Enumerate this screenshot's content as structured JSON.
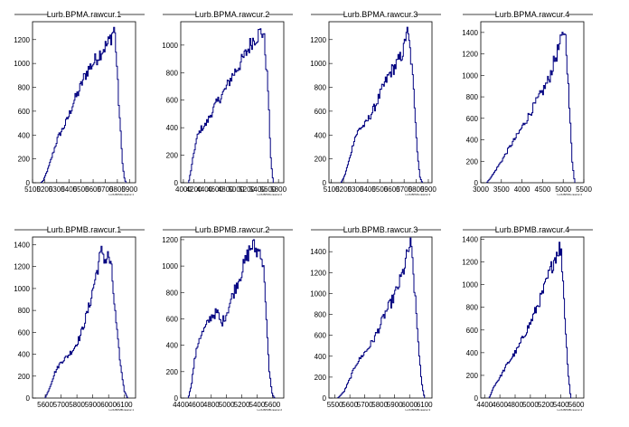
{
  "chart_data": [
    {
      "type": "bar",
      "title": "Lurb.BPMA.rawcur.1",
      "xlabel": "Lurb.BPMA.rawcur.1",
      "xlim": [
        5100,
        5950
      ],
      "ylim": [
        0,
        1350
      ],
      "x_ticks": [
        5100,
        5200,
        5300,
        5400,
        5500,
        5600,
        5700,
        5800,
        5900
      ],
      "y_ticks": [
        0,
        200,
        400,
        600,
        800,
        1000,
        1200
      ],
      "profile": [
        [
          5170,
          0
        ],
        [
          5190,
          20
        ],
        [
          5230,
          120
        ],
        [
          5270,
          250
        ],
        [
          5310,
          380
        ],
        [
          5360,
          470
        ],
        [
          5400,
          560
        ],
        [
          5440,
          680
        ],
        [
          5480,
          760
        ],
        [
          5520,
          870
        ],
        [
          5560,
          950
        ],
        [
          5600,
          1000
        ],
        [
          5640,
          1060
        ],
        [
          5680,
          1120
        ],
        [
          5720,
          1160
        ],
        [
          5760,
          1250
        ],
        [
          5775,
          1310
        ],
        [
          5790,
          1100
        ],
        [
          5810,
          700
        ],
        [
          5825,
          450
        ],
        [
          5840,
          200
        ],
        [
          5855,
          50
        ],
        [
          5870,
          0
        ]
      ]
    },
    {
      "type": "bar",
      "title": "Lurb.BPMA.rawcur.2",
      "xlabel": "Lurb.BPMA.rawcur.2",
      "xlim": [
        3950,
        5900
      ],
      "ylim": [
        0,
        1170
      ],
      "x_ticks": [
        4000,
        4200,
        4400,
        4600,
        4800,
        5000,
        5200,
        5400,
        5600,
        5800
      ],
      "y_ticks": [
        0,
        200,
        400,
        600,
        800,
        1000
      ],
      "profile": [
        [
          4100,
          0
        ],
        [
          4150,
          100
        ],
        [
          4200,
          220
        ],
        [
          4260,
          330
        ],
        [
          4330,
          390
        ],
        [
          4420,
          420
        ],
        [
          4500,
          480
        ],
        [
          4600,
          560
        ],
        [
          4700,
          620
        ],
        [
          4800,
          680
        ],
        [
          4900,
          760
        ],
        [
          5000,
          820
        ],
        [
          5100,
          880
        ],
        [
          5200,
          950
        ],
        [
          5300,
          1030
        ],
        [
          5400,
          1070
        ],
        [
          5480,
          1100
        ],
        [
          5520,
          1080
        ],
        [
          5560,
          900
        ],
        [
          5600,
          700
        ],
        [
          5630,
          400
        ],
        [
          5660,
          150
        ],
        [
          5700,
          0
        ]
      ]
    },
    {
      "type": "bar",
      "title": "Lurb.BPMA.rawcur.3",
      "xlabel": "Lurb.BPMA.rawcur.3",
      "xlim": [
        5080,
        5930
      ],
      "ylim": [
        0,
        1350
      ],
      "x_ticks": [
        5100,
        5200,
        5300,
        5400,
        5500,
        5600,
        5700,
        5800,
        5900
      ],
      "y_ticks": [
        0,
        200,
        400,
        600,
        800,
        1000,
        1200
      ],
      "profile": [
        [
          5180,
          0
        ],
        [
          5210,
          60
        ],
        [
          5250,
          200
        ],
        [
          5290,
          370
        ],
        [
          5330,
          450
        ],
        [
          5380,
          490
        ],
        [
          5430,
          580
        ],
        [
          5470,
          660
        ],
        [
          5510,
          760
        ],
        [
          5550,
          850
        ],
        [
          5590,
          930
        ],
        [
          5630,
          980
        ],
        [
          5670,
          1050
        ],
        [
          5700,
          1120
        ],
        [
          5720,
          1290
        ],
        [
          5745,
          1150
        ],
        [
          5770,
          900
        ],
        [
          5790,
          600
        ],
        [
          5810,
          250
        ],
        [
          5830,
          50
        ],
        [
          5850,
          0
        ]
      ]
    },
    {
      "type": "bar",
      "title": "Lurb.BPMA.rawcur.4",
      "xlabel": "Lurb.BPMA.rawcur.4",
      "xlim": [
        3000,
        5500
      ],
      "ylim": [
        0,
        1500
      ],
      "x_ticks": [
        3000,
        3500,
        4000,
        4500,
        5000,
        5500
      ],
      "y_ticks": [
        0,
        200,
        400,
        600,
        800,
        1000,
        1200,
        1400
      ],
      "profile": [
        [
          3150,
          0
        ],
        [
          3300,
          80
        ],
        [
          3500,
          200
        ],
        [
          3700,
          330
        ],
        [
          3900,
          450
        ],
        [
          4100,
          580
        ],
        [
          4300,
          720
        ],
        [
          4500,
          850
        ],
        [
          4650,
          960
        ],
        [
          4800,
          1150
        ],
        [
          4900,
          1260
        ],
        [
          4980,
          1350
        ],
        [
          5030,
          1440
        ],
        [
          5080,
          1250
        ],
        [
          5150,
          700
        ],
        [
          5220,
          200
        ],
        [
          5280,
          0
        ]
      ]
    },
    {
      "type": "bar",
      "title": "Lurb.BPMB.rawcur.1",
      "xlabel": "Lurb.BPMB.rawcur.1",
      "xlim": [
        5520,
        6170
      ],
      "ylim": [
        0,
        1470
      ],
      "x_ticks": [
        5600,
        5700,
        5800,
        5900,
        6000,
        6100
      ],
      "y_ticks": [
        0,
        200,
        400,
        600,
        800,
        1000,
        1200,
        1400
      ],
      "profile": [
        [
          5600,
          0
        ],
        [
          5630,
          100
        ],
        [
          5660,
          230
        ],
        [
          5700,
          330
        ],
        [
          5740,
          380
        ],
        [
          5780,
          450
        ],
        [
          5820,
          560
        ],
        [
          5850,
          700
        ],
        [
          5880,
          850
        ],
        [
          5910,
          1050
        ],
        [
          5940,
          1250
        ],
        [
          5960,
          1350
        ],
        [
          5980,
          1250
        ],
        [
          6000,
          1300
        ],
        [
          6020,
          1150
        ],
        [
          6040,
          800
        ],
        [
          6060,
          500
        ],
        [
          6080,
          250
        ],
        [
          6100,
          60
        ],
        [
          6120,
          0
        ]
      ]
    },
    {
      "type": "bar",
      "title": "Lurb.BPMB.rawcur.2",
      "xlabel": "Lurb.BPMB.rawcur.2",
      "xlim": [
        4400,
        5750
      ],
      "ylim": [
        0,
        1220
      ],
      "x_ticks": [
        4400,
        4600,
        4800,
        5000,
        5200,
        5400,
        5600
      ],
      "y_ticks": [
        0,
        200,
        400,
        600,
        800,
        1000,
        1200
      ],
      "profile": [
        [
          4500,
          0
        ],
        [
          4540,
          100
        ],
        [
          4580,
          280
        ],
        [
          4640,
          450
        ],
        [
          4720,
          530
        ],
        [
          4800,
          620
        ],
        [
          4880,
          650
        ],
        [
          4930,
          560
        ],
        [
          5000,
          640
        ],
        [
          5080,
          780
        ],
        [
          5160,
          900
        ],
        [
          5240,
          1020
        ],
        [
          5300,
          1120
        ],
        [
          5340,
          1160
        ],
        [
          5400,
          1110
        ],
        [
          5450,
          1120
        ],
        [
          5500,
          900
        ],
        [
          5530,
          500
        ],
        [
          5560,
          200
        ],
        [
          5600,
          30
        ],
        [
          5630,
          0
        ]
      ]
    },
    {
      "type": "bar",
      "title": "Lurb.BPMB.rawcur.3",
      "xlabel": "Lurb.BPMB.rawcur.3",
      "xlim": [
        5460,
        6150
      ],
      "ylim": [
        0,
        1540
      ],
      "x_ticks": [
        5500,
        5600,
        5700,
        5800,
        5900,
        6000,
        6100
      ],
      "y_ticks": [
        0,
        200,
        400,
        600,
        800,
        1000,
        1200,
        1400
      ],
      "profile": [
        [
          5520,
          0
        ],
        [
          5560,
          60
        ],
        [
          5600,
          180
        ],
        [
          5640,
          320
        ],
        [
          5680,
          400
        ],
        [
          5720,
          470
        ],
        [
          5760,
          560
        ],
        [
          5800,
          680
        ],
        [
          5840,
          820
        ],
        [
          5880,
          920
        ],
        [
          5920,
          1050
        ],
        [
          5960,
          1220
        ],
        [
          5990,
          1400
        ],
        [
          6005,
          1480
        ],
        [
          6020,
          1300
        ],
        [
          6040,
          900
        ],
        [
          6060,
          500
        ],
        [
          6080,
          150
        ],
        [
          6100,
          0
        ]
      ]
    },
    {
      "type": "bar",
      "title": "Lurb.BPMB.rawcur.4",
      "xlabel": "Lurb.BPMB.rawcur.4",
      "xlim": [
        4350,
        5700
      ],
      "ylim": [
        0,
        1420
      ],
      "x_ticks": [
        4400,
        4600,
        4800,
        5000,
        5200,
        5400,
        5600
      ],
      "y_ticks": [
        0,
        200,
        400,
        600,
        800,
        1000,
        1200,
        1400
      ],
      "profile": [
        [
          4460,
          0
        ],
        [
          4520,
          100
        ],
        [
          4600,
          180
        ],
        [
          4680,
          280
        ],
        [
          4760,
          360
        ],
        [
          4840,
          440
        ],
        [
          4920,
          560
        ],
        [
          5000,
          660
        ],
        [
          5080,
          790
        ],
        [
          5160,
          920
        ],
        [
          5240,
          1080
        ],
        [
          5300,
          1200
        ],
        [
          5340,
          1270
        ],
        [
          5380,
          1330
        ],
        [
          5410,
          1250
        ],
        [
          5440,
          900
        ],
        [
          5470,
          500
        ],
        [
          5500,
          200
        ],
        [
          5530,
          0
        ]
      ]
    }
  ]
}
